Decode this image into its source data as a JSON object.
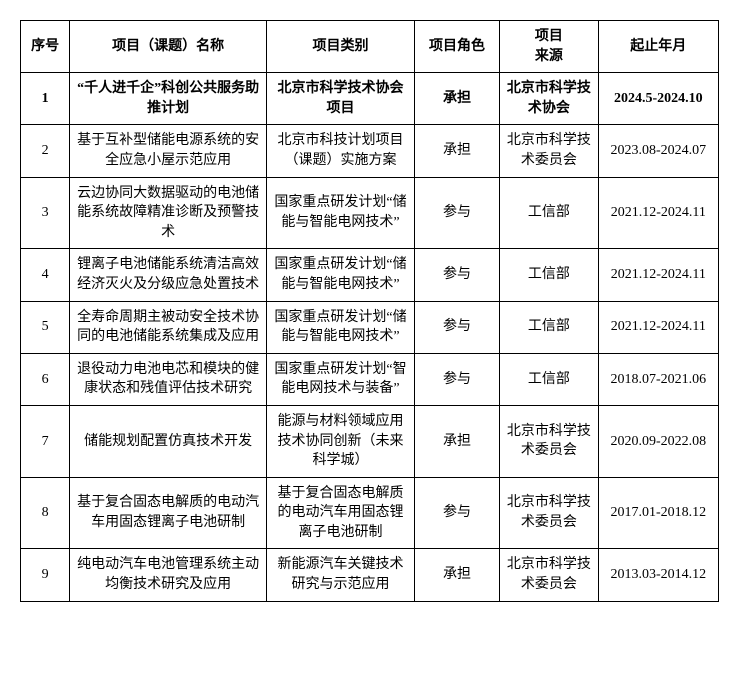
{
  "headers": {
    "idx": "序号",
    "name": "项目（课题）名称",
    "type": "项目类别",
    "role": "项目角色",
    "source": "项目\n来源",
    "period": "起止年月"
  },
  "rows": [
    {
      "idx": "1",
      "name": "“千人进千企”科创公共服务助推计划",
      "type": "北京市科学技术协会项目",
      "role": "承担",
      "source": "北京市科学技术协会",
      "period": "2024.5-2024.10",
      "bold": true
    },
    {
      "idx": "2",
      "name": "基于互补型储能电源系统的安全应急小屋示范应用",
      "type": "北京市科技计划项目（课题）实施方案",
      "role": "承担",
      "source": "北京市科学技术委员会",
      "period": "2023.08-2024.07",
      "bold": false
    },
    {
      "idx": "3",
      "name": "云边协同大数据驱动的电池储能系统故障精准诊断及预警技术",
      "type": "国家重点研发计划“储能与智能电网技术”",
      "role": "参与",
      "source": "工信部",
      "period": "2021.12-2024.11",
      "bold": false
    },
    {
      "idx": "4",
      "name": "锂离子电池储能系统清洁高效经济灭火及分级应急处置技术",
      "type": "国家重点研发计划“储能与智能电网技术”",
      "role": "参与",
      "source": "工信部",
      "period": "2021.12-2024.11",
      "bold": false
    },
    {
      "idx": "5",
      "name": "全寿命周期主被动安全技术协同的电池储能系统集成及应用",
      "type": "国家重点研发计划“储能与智能电网技术”",
      "role": "参与",
      "source": "工信部",
      "period": "2021.12-2024.11",
      "bold": false
    },
    {
      "idx": "6",
      "name": "退役动力电池电芯和模块的健康状态和残值评估技术研究",
      "type": "国家重点研发计划“智能电网技术与装备”",
      "role": "参与",
      "source": "工信部",
      "period": "2018.07-2021.06",
      "bold": false
    },
    {
      "idx": "7",
      "name": "储能规划配置仿真技术开发",
      "type": "能源与材料领域应用技术协同创新（未来科学城）",
      "role": "承担",
      "source": "北京市科学技术委员会",
      "period": "2020.09-2022.08",
      "bold": false
    },
    {
      "idx": "8",
      "name": "基于复合固态电解质的电动汽车用固态锂离子电池研制",
      "type": "基于复合固态电解质的电动汽车用固态锂离子电池研制",
      "role": "参与",
      "source": "北京市科学技术委员会",
      "period": "2017.01-2018.12",
      "bold": false
    },
    {
      "idx": "9",
      "name": "纯电动汽车电池管理系统主动均衡技术研究及应用",
      "type": "新能源汽车关键技术研究与示范应用",
      "role": "承担",
      "source": "北京市科学技术委员会",
      "period": "2013.03-2014.12",
      "bold": false
    }
  ]
}
